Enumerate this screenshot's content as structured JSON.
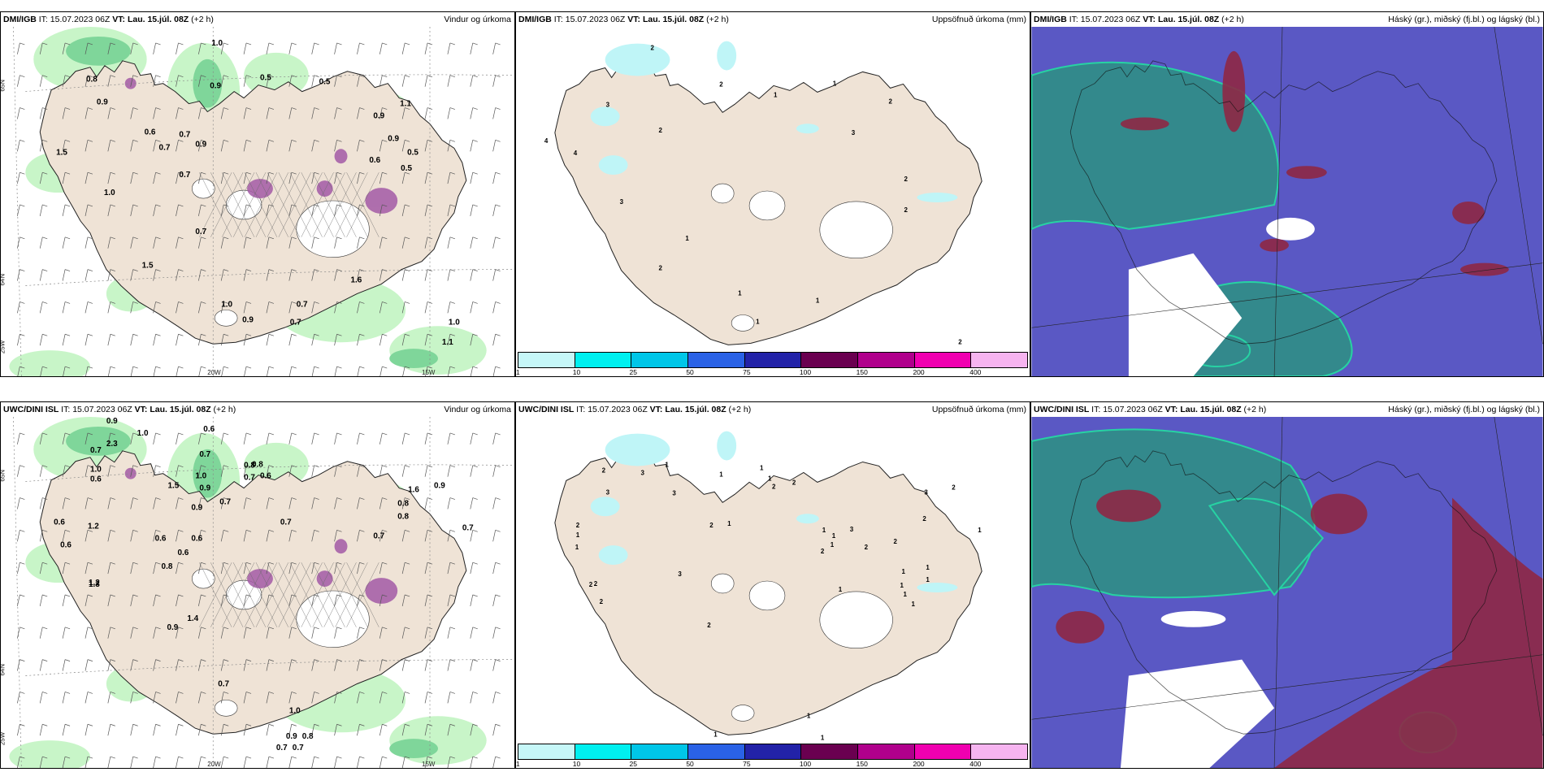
{
  "colors": {
    "land": "#efe3d6",
    "rain_light": "#c8f5c8",
    "rain_mid": "#7fd69a",
    "rain_dark": "#2a8a4a",
    "purple": "#a35aa6",
    "cloud_blue": "#5a58c4",
    "cloud_teal": "#2f8f86",
    "cloud_red": "#8e2845",
    "accum_cyan": "#bff5f7"
  },
  "colorbar": {
    "colors": [
      "#c6f7f8",
      "#00f0f0",
      "#00c6e8",
      "#2a62e6",
      "#2222a8",
      "#6a0050",
      "#b0008c",
      "#f000b0",
      "#f6b4f0"
    ],
    "labels": [
      "1",
      "10",
      "25",
      "50",
      "75",
      "100",
      "150",
      "200",
      "400"
    ]
  },
  "panels": [
    {
      "model": "DMI/IGB",
      "it_label": "IT:",
      "it": "15.07.2023 06Z",
      "vt_label": "VT:",
      "vt": "Lau. 15.júl. 08Z",
      "lead": "(+2 h)",
      "right_title": "Vindur og úrkoma",
      "type": "wind",
      "grid_labels": [
        "65N",
        "64N",
        "25W",
        "20W",
        "15W"
      ],
      "values": [
        [
          "1.0",
          260,
          55
        ],
        [
          "0.8",
          105,
          100
        ],
        [
          "0.9",
          258,
          108
        ],
        [
          "0.5",
          320,
          98
        ],
        [
          "0.5",
          393,
          103
        ],
        [
          "1.1",
          493,
          130
        ],
        [
          "0.9",
          118,
          128
        ],
        [
          "0.9",
          460,
          145
        ],
        [
          "0.6",
          177,
          165
        ],
        [
          "0.7",
          220,
          168
        ],
        [
          "0.7",
          195,
          184
        ],
        [
          "0.9",
          240,
          180
        ],
        [
          "0.9",
          478,
          173
        ],
        [
          "1.5",
          68,
          190
        ],
        [
          "0.5",
          502,
          190
        ],
        [
          "0.6",
          455,
          200
        ],
        [
          "0.7",
          220,
          218
        ],
        [
          "0.5",
          494,
          210
        ],
        [
          "1.0",
          127,
          240
        ],
        [
          "0.7",
          240,
          288
        ],
        [
          "1.5",
          174,
          330
        ],
        [
          "1.6",
          432,
          348
        ],
        [
          "1.0",
          272,
          378
        ],
        [
          "0.7",
          365,
          378
        ],
        [
          "0.9",
          298,
          397
        ],
        [
          "0.7",
          357,
          400
        ],
        [
          "1.0",
          553,
          400
        ],
        [
          "1.1",
          545,
          425
        ]
      ]
    },
    {
      "model": "DMI/IGB",
      "it_label": "IT:",
      "it": "15.07.2023 06Z",
      "vt_label": "VT:",
      "vt": "Lau. 15.júl. 08Z",
      "lead": "(+2 h)",
      "right_title": "Uppsöfnuð úrkoma (mm)",
      "type": "accum",
      "values": [
        [
          "2",
          800,
          60
        ],
        [
          "2",
          885,
          105
        ],
        [
          "3",
          745,
          130
        ],
        [
          "2",
          1094,
          126
        ],
        [
          "1",
          952,
          118
        ],
        [
          "1",
          1025,
          104
        ],
        [
          "3",
          1048,
          165
        ],
        [
          "2",
          810,
          162
        ],
        [
          "4",
          669,
          175
        ],
        [
          "4",
          705,
          190
        ],
        [
          "3",
          762,
          250
        ],
        [
          "2",
          1113,
          222
        ],
        [
          "2",
          1113,
          260
        ],
        [
          "1",
          843,
          295
        ],
        [
          "2",
          810,
          332
        ],
        [
          "1",
          908,
          363
        ],
        [
          "1",
          1004,
          372
        ],
        [
          "1",
          930,
          398
        ],
        [
          "2",
          1180,
          423
        ]
      ]
    },
    {
      "model": "DMI/IGB",
      "it_label": "IT:",
      "it": "15.07.2023 06Z",
      "vt_label": "VT:",
      "vt": "Lau. 15.júl. 08Z",
      "lead": "(+2 h)",
      "right_title": "Háský (gr.), miðský (fj.bl.) og lágský (bl.)",
      "type": "cloud",
      "variant": 1
    },
    {
      "model": "UWC/DINI ISL",
      "it_label": "IT:",
      "it": "15.07.2023 06Z",
      "vt_label": "VT:",
      "vt": "Lau. 15.júl. 08Z",
      "lead": "(+2 h)",
      "right_title": "Vindur og úrkoma",
      "type": "wind",
      "grid_labels": [
        "65N",
        "64N",
        "25W",
        "20W",
        "15W"
      ],
      "values": [
        [
          "0.9",
          130,
          520
        ],
        [
          "1.0",
          168,
          535
        ],
        [
          "0.6",
          250,
          530
        ],
        [
          "2.3",
          130,
          548
        ],
        [
          "0.7",
          110,
          556
        ],
        [
          "0.7",
          245,
          561
        ],
        [
          "0.8",
          300,
          575
        ],
        [
          "0.8",
          310,
          574
        ],
        [
          "1.0",
          110,
          580
        ],
        [
          "0.6",
          110,
          592
        ],
        [
          "0.7",
          300,
          590
        ],
        [
          "0.6",
          320,
          588
        ],
        [
          "1.0",
          240,
          588
        ],
        [
          "0.9",
          245,
          603
        ],
        [
          "1.5",
          206,
          600
        ],
        [
          "1.6",
          503,
          605
        ],
        [
          "0.9",
          535,
          600
        ],
        [
          "0.7",
          270,
          620
        ],
        [
          "0.8",
          490,
          622
        ],
        [
          "0.8",
          490,
          638
        ],
        [
          "0.9",
          235,
          627
        ],
        [
          "0.7",
          345,
          645
        ],
        [
          "0.7",
          570,
          652
        ],
        [
          "1.2",
          107,
          650
        ],
        [
          "0.6",
          65,
          645
        ],
        [
          "0.6",
          73,
          673
        ],
        [
          "0.6",
          190,
          665
        ],
        [
          "0.6",
          235,
          665
        ],
        [
          "0.6",
          218,
          683
        ],
        [
          "0.7",
          460,
          662
        ],
        [
          "1.2",
          108,
          720
        ],
        [
          "0.8",
          198,
          700
        ],
        [
          "1.3",
          108,
          722
        ],
        [
          "0.9",
          205,
          775
        ],
        [
          "1.4",
          230,
          764
        ],
        [
          "0.7",
          268,
          845
        ],
        [
          "1.0",
          356,
          878
        ],
        [
          "0.9",
          352,
          910
        ],
        [
          "0.8",
          372,
          910
        ],
        [
          "0.7",
          340,
          924
        ],
        [
          "0.7",
          360,
          924
        ]
      ]
    },
    {
      "model": "UWC/DINI ISL",
      "it_label": "IT:",
      "it": "15.07.2023 06Z",
      "vt_label": "VT:",
      "vt": "Lau. 15.júl. 08Z",
      "lead": "(+2 h)",
      "right_title": "Uppsöfnuð úrkoma (mm)",
      "type": "accum",
      "values": [
        [
          "2",
          740,
          580
        ],
        [
          "3",
          788,
          583
        ],
        [
          "1",
          818,
          573
        ],
        [
          "1",
          935,
          577
        ],
        [
          "2",
          950,
          600
        ],
        [
          "1",
          945,
          590
        ],
        [
          "3",
          1138,
          607
        ],
        [
          "2",
          1172,
          601
        ],
        [
          "3",
          827,
          608
        ],
        [
          "3",
          745,
          607
        ],
        [
          "1",
          885,
          585
        ],
        [
          "2",
          975,
          595
        ],
        [
          "2",
          708,
          648
        ],
        [
          "2",
          873,
          648
        ],
        [
          "1",
          895,
          646
        ],
        [
          "1",
          708,
          660
        ],
        [
          "2",
          1136,
          640
        ],
        [
          "1",
          1012,
          654
        ],
        [
          "3",
          1046,
          653
        ],
        [
          "1",
          1024,
          661
        ],
        [
          "2",
          1010,
          680
        ],
        [
          "2",
          1064,
          675
        ],
        [
          "2",
          1100,
          668
        ],
        [
          "1",
          1022,
          672
        ],
        [
          "2",
          730,
          720
        ],
        [
          "1",
          707,
          675
        ],
        [
          "1",
          1110,
          705
        ],
        [
          "1",
          1140,
          700
        ],
        [
          "3",
          834,
          708
        ],
        [
          "1",
          1140,
          715
        ],
        [
          "1",
          1108,
          722
        ],
        [
          "1",
          1204,
          654
        ],
        [
          "2",
          724,
          721
        ],
        [
          "2",
          737,
          742
        ],
        [
          "2",
          870,
          771
        ],
        [
          "1",
          1032,
          727
        ],
        [
          "1",
          1112,
          733
        ],
        [
          "1",
          1122,
          745
        ],
        [
          "1",
          993,
          883
        ],
        [
          "1",
          878,
          906
        ],
        [
          "1",
          1010,
          910
        ]
      ]
    },
    {
      "model": "UWC/DINI ISL",
      "it_label": "IT:",
      "it": "15.07.2023 06Z",
      "vt_label": "VT:",
      "vt": "Lau. 15.júl. 08Z",
      "lead": "(+2 h)",
      "right_title": "Háský (gr.), miðský (fj.bl.) og lágský (bl.)",
      "type": "cloud",
      "variant": 2
    }
  ]
}
